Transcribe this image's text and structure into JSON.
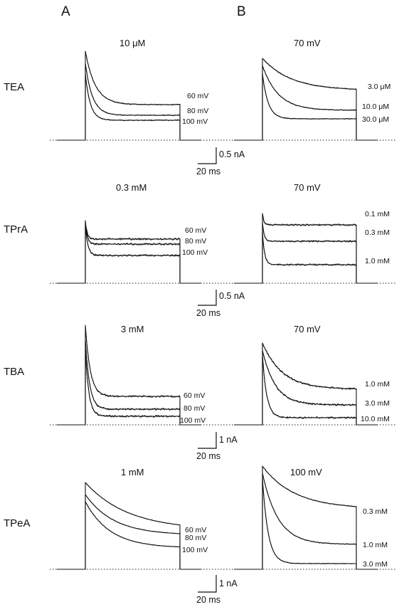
{
  "panels": [
    "A",
    "B"
  ],
  "chart_data": [
    {
      "type": "line",
      "panel": "A",
      "blocker": "TEA",
      "condition": "10 μM",
      "series": [
        {
          "name": "60 mV",
          "steady": 0.5,
          "peak": 1.25
        },
        {
          "name": "80 mV",
          "steady": 0.35,
          "peak": 1.08
        },
        {
          "name": "100 mV",
          "steady": 0.28,
          "peak": 0.93
        }
      ],
      "scale": {
        "current": "0.5 nA",
        "time": "20 ms"
      }
    },
    {
      "type": "line",
      "panel": "B",
      "blocker": "TEA",
      "condition": "70 mV",
      "series": [
        {
          "name": "3.0 μM",
          "steady": 0.7,
          "peak": 1.15
        },
        {
          "name": "10.0 μM",
          "steady": 0.42,
          "peak": 1.05
        },
        {
          "name": "30.0 μM",
          "steady": 0.3,
          "peak": 0.93
        }
      ],
      "scale": {
        "current": "0.5 nA",
        "time": "20 ms"
      }
    },
    {
      "type": "line",
      "panel": "A",
      "blocker": "TPrA",
      "condition": "0.3 mM",
      "series": [
        {
          "name": "60 mV",
          "steady": 0.62,
          "peak": 0.88
        },
        {
          "name": "80 mV",
          "steady": 0.55,
          "peak": 0.85
        },
        {
          "name": "100 mV",
          "steady": 0.39,
          "peak": 0.82
        }
      ],
      "scale": {
        "current": "0.5 nA",
        "time": "20 ms"
      }
    },
    {
      "type": "line",
      "panel": "B",
      "blocker": "TPrA",
      "condition": "70 mV",
      "series": [
        {
          "name": "0.1 mM",
          "steady": 0.82,
          "peak": 0.98
        },
        {
          "name": "0.3 mM",
          "steady": 0.59,
          "peak": 0.85
        },
        {
          "name": "1.0 mM",
          "steady": 0.26,
          "peak": 0.72
        }
      ],
      "scale": {
        "current": "0.5 nA",
        "time": "20 ms"
      }
    },
    {
      "type": "line",
      "panel": "A",
      "blocker": "TBA",
      "condition": "3 mM",
      "series": [
        {
          "name": "60 mV",
          "steady": 0.4,
          "peak": 1.4
        },
        {
          "name": "80 mV",
          "steady": 0.22,
          "peak": 1.2
        },
        {
          "name": "100 mV",
          "steady": 0.12,
          "peak": 1.05
        }
      ],
      "scale": {
        "current": "1 nA",
        "time": "20 ms"
      }
    },
    {
      "type": "line",
      "panel": "B",
      "blocker": "TBA",
      "condition": "70 mV",
      "series": [
        {
          "name": "1.0 mM",
          "steady": 0.5,
          "peak": 1.15
        },
        {
          "name": "3.0 mM",
          "steady": 0.28,
          "peak": 1.05
        },
        {
          "name": "10.0 mM",
          "steady": 0.1,
          "peak": 0.98
        }
      ],
      "scale": {
        "current": "1 nA",
        "time": "20 ms"
      }
    },
    {
      "type": "line",
      "panel": "A",
      "blocker": "TPeA",
      "condition": "1 mM",
      "series": [
        {
          "name": "60 mV",
          "steady": 0.55,
          "peak": 1.22
        },
        {
          "name": "80 mV",
          "steady": 0.48,
          "peak": 1.05
        },
        {
          "name": "100 mV",
          "steady": 0.3,
          "peak": 0.95
        }
      ],
      "scale": {
        "current": "1 nA",
        "time": "20 ms"
      }
    },
    {
      "type": "line",
      "panel": "B",
      "blocker": "TPeA",
      "condition": "100 mV",
      "series": [
        {
          "name": "0.3 mM",
          "steady": 0.85,
          "peak": 1.45
        },
        {
          "name": "1.0 mM",
          "steady": 0.35,
          "peak": 1.35
        },
        {
          "name": "3.0 mM",
          "steady": 0.08,
          "peak": 1.28
        }
      ],
      "scale": {
        "current": "1 nA",
        "time": "20 ms"
      }
    }
  ]
}
